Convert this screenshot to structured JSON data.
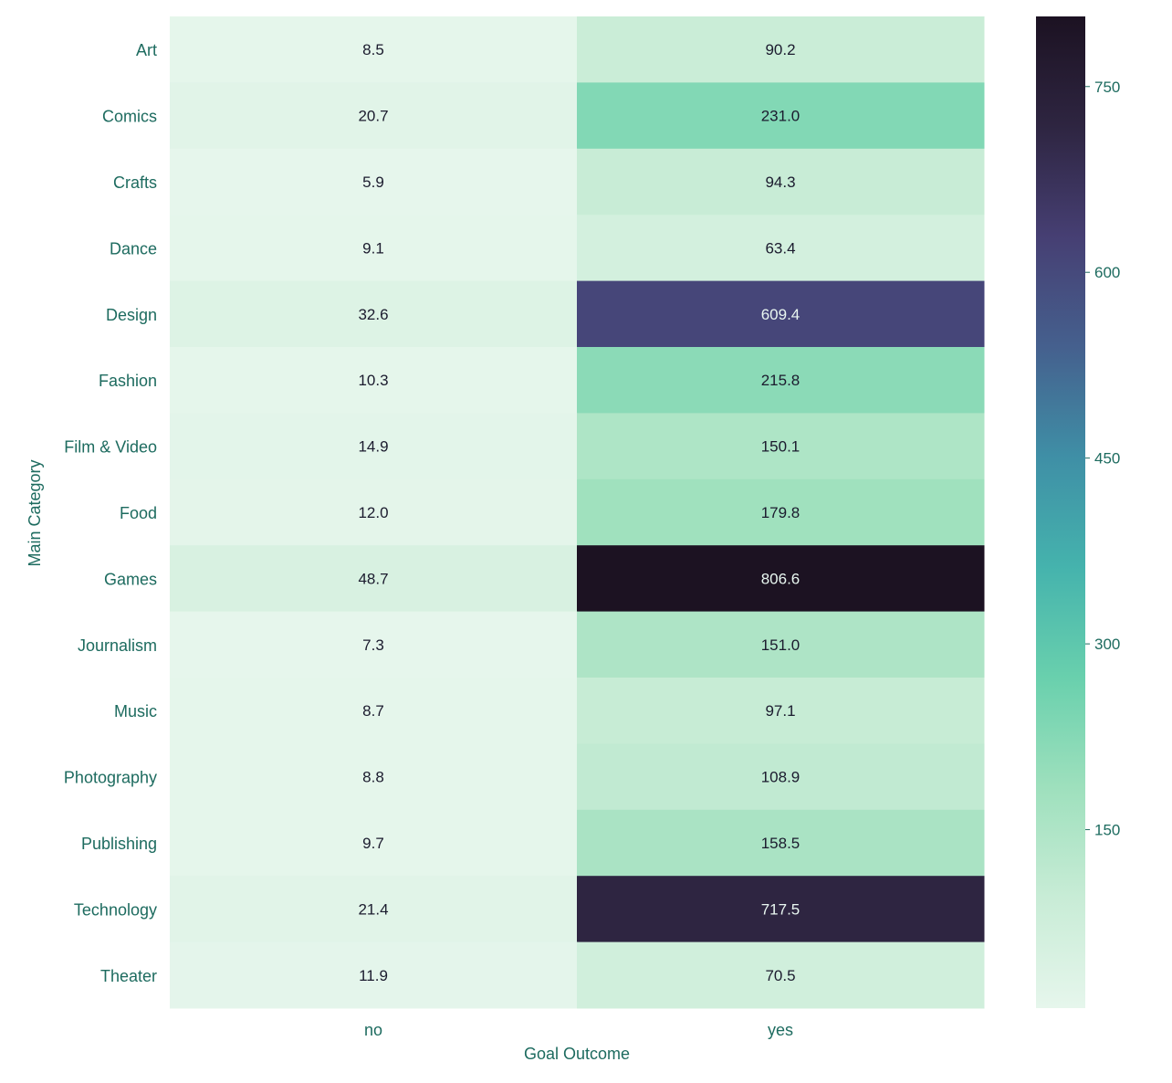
{
  "colors": {
    "text": "#1d6b5f",
    "cell_text_dark": "#1b1b2e",
    "cell_text_light": "#e9f7f1",
    "colormap": [
      "#e6f6ec",
      "#c8ecd6",
      "#9ee0bd",
      "#69d0ad",
      "#45b3ad",
      "#3f8fa6",
      "#45608e",
      "#463f73",
      "#2e2541",
      "#1c1222"
    ]
  },
  "chart_data": {
    "type": "heatmap",
    "title": "",
    "xlabel": "Goal Outcome",
    "ylabel": "Main Category",
    "x_categories": [
      "no",
      "yes"
    ],
    "y_categories": [
      "Art",
      "Comics",
      "Crafts",
      "Dance",
      "Design",
      "Fashion",
      "Film & Video",
      "Food",
      "Games",
      "Journalism",
      "Music",
      "Photography",
      "Publishing",
      "Technology",
      "Theater"
    ],
    "values": [
      [
        8.5,
        90.2
      ],
      [
        20.7,
        231.0
      ],
      [
        5.9,
        94.3
      ],
      [
        9.1,
        63.4
      ],
      [
        32.6,
        609.4
      ],
      [
        10.3,
        215.8
      ],
      [
        14.9,
        150.1
      ],
      [
        12.0,
        179.8
      ],
      [
        48.7,
        806.6
      ],
      [
        7.3,
        151.0
      ],
      [
        8.7,
        97.1
      ],
      [
        8.8,
        108.9
      ],
      [
        9.7,
        158.5
      ],
      [
        21.4,
        717.5
      ],
      [
        11.9,
        70.5
      ]
    ],
    "value_labels": [
      [
        "8.5",
        "90.2"
      ],
      [
        "20.7",
        "231.0"
      ],
      [
        "5.9",
        "94.3"
      ],
      [
        "9.1",
        "63.4"
      ],
      [
        "32.6",
        "609.4"
      ],
      [
        "10.3",
        "215.8"
      ],
      [
        "14.9",
        "150.1"
      ],
      [
        "12.0",
        "179.8"
      ],
      [
        "48.7",
        "806.6"
      ],
      [
        "7.3",
        "151.0"
      ],
      [
        "8.7",
        "97.1"
      ],
      [
        "8.8",
        "108.9"
      ],
      [
        "9.7",
        "158.5"
      ],
      [
        "21.4",
        "717.5"
      ],
      [
        "11.9",
        "70.5"
      ]
    ],
    "colorbar": {
      "range": [
        5.9,
        806.6
      ],
      "ticks": [
        150,
        300,
        450,
        600,
        750
      ],
      "tick_labels": [
        "150",
        "300",
        "450",
        "600",
        "750"
      ]
    },
    "grid": false
  }
}
